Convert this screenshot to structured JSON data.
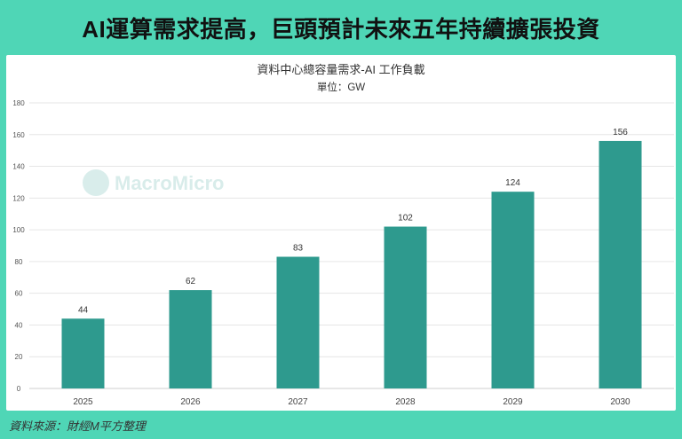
{
  "headline": "AI運算需求提高，巨頭預計未來五年持續擴張投資",
  "source": "資料來源：財經M平方整理",
  "watermark": "MacroMicro",
  "colors": {
    "bar": "#2e9a8e",
    "frame": "#4fd6b6",
    "grid": "#e6e6e6"
  },
  "chart_data": {
    "type": "bar",
    "title": "資料中心總容量需求-AI 工作負載",
    "subtitle": "單位：GW",
    "categories": [
      "2025",
      "2026",
      "2027",
      "2028",
      "2029",
      "2030"
    ],
    "values": [
      44,
      62,
      83,
      102,
      124,
      156
    ],
    "data_labels": [
      "44",
      "62",
      "83",
      "102",
      "124",
      "156"
    ],
    "ylim": [
      0,
      180
    ],
    "yticks": [
      0,
      20,
      40,
      60,
      80,
      100,
      120,
      140,
      160,
      180
    ],
    "grid": true,
    "legend": "none"
  }
}
